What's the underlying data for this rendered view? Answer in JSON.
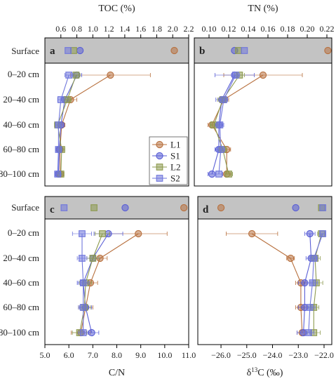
{
  "colors": {
    "L1": "#b8713f",
    "S1": "#5a5fd6",
    "L2": "#8d9a4f",
    "S2": "#6f76dc",
    "surface_band": "#c3c3c3",
    "marker_fill_alpha": 0.45
  },
  "rows": [
    "Surface",
    "0–20 cm",
    "20–40 cm",
    "40–60 cm",
    "60–80 cm",
    "80–100 cm"
  ],
  "legend": {
    "placement": "right-middle of panel a",
    "entries": [
      {
        "name": "L1",
        "marker": "circle"
      },
      {
        "name": "S1",
        "marker": "circle"
      },
      {
        "name": "L2",
        "marker": "square"
      },
      {
        "name": "S2",
        "marker": "square"
      }
    ]
  },
  "chart_data": [
    {
      "type": "line",
      "panel_label": "a",
      "xlabel": "TOC (%)",
      "xlim": [
        0.4,
        2.2
      ],
      "xticks": [
        "0.6",
        "0.8",
        "1.0",
        "1.2",
        "1.4",
        "1.6",
        "1.8",
        "2.0",
        "2.2"
      ],
      "axis_position": "top",
      "surface": {
        "L1": 2.02,
        "S1": 0.84,
        "L2": 0.76,
        "S2": 0.69
      },
      "series": [
        {
          "name": "L1",
          "values": [
            1.22,
            0.72,
            0.61,
            0.59,
            0.59
          ],
          "err": [
            0.5,
            0.08,
            0.04,
            0.04,
            0.04
          ]
        },
        {
          "name": "S1",
          "values": [
            0.8,
            0.65,
            0.6,
            0.58,
            0.57
          ],
          "err": [
            0.06,
            0.05,
            0.04,
            0.04,
            0.03
          ]
        },
        {
          "name": "L2",
          "values": [
            0.79,
            0.68,
            0.56,
            0.61,
            0.6
          ],
          "err": [
            0.05,
            0.05,
            0.04,
            0.04,
            0.04
          ]
        },
        {
          "name": "S2",
          "values": [
            0.7,
            0.6,
            0.57,
            0.57,
            0.56
          ],
          "err": [
            0.05,
            0.04,
            0.03,
            0.03,
            0.03
          ]
        }
      ]
    },
    {
      "type": "line",
      "panel_label": "b",
      "xlabel": "TN (%)",
      "xlim": [
        0.085,
        0.225
      ],
      "xticks": [
        "0.10",
        "0.12",
        "0.14",
        "0.16",
        "0.18",
        "0.20",
        "0.22"
      ],
      "axis_position": "top",
      "surface": {
        "L1": 0.221,
        "S1": 0.126,
        "L2": 0.13,
        "S2": 0.136
      },
      "series": [
        {
          "name": "L1",
          "values": [
            0.155,
            0.115,
            0.103,
            0.118,
            0.118
          ],
          "err": [
            0.04,
            0.005,
            0.004,
            0.004,
            0.004
          ]
        },
        {
          "name": "S1",
          "values": [
            0.126,
            0.113,
            0.11,
            0.11,
            0.103
          ],
          "err": [
            0.02,
            0.006,
            0.004,
            0.004,
            0.004
          ]
        },
        {
          "name": "L2",
          "values": [
            0.131,
            0.114,
            0.105,
            0.114,
            0.12
          ],
          "err": [
            0.005,
            0.005,
            0.004,
            0.004,
            0.004
          ]
        },
        {
          "name": "S2",
          "values": [
            0.127,
            0.115,
            0.111,
            0.112,
            0.11
          ],
          "err": [
            0.004,
            0.004,
            0.004,
            0.004,
            0.004
          ]
        }
      ]
    },
    {
      "type": "line",
      "panel_label": "c",
      "xlabel": "C/N",
      "xlim": [
        5.0,
        11.0
      ],
      "xticks": [
        "5.0",
        "6.0",
        "7.0",
        "8.0",
        "9.0",
        "10.0",
        "11.0"
      ],
      "axis_position": "bottom",
      "surface": {
        "L1": 10.8,
        "S1": 8.35,
        "L2": 7.05,
        "S2": 5.8
      },
      "series": [
        {
          "name": "L1",
          "values": [
            8.9,
            7.3,
            6.9,
            6.7,
            6.5
          ],
          "err": [
            1.2,
            0.3,
            0.3,
            0.3,
            0.4
          ]
        },
        {
          "name": "S1",
          "values": [
            7.65,
            7.0,
            6.6,
            6.7,
            6.95
          ],
          "err": [
            0.6,
            0.25,
            0.25,
            0.25,
            0.3
          ]
        },
        {
          "name": "L2",
          "values": [
            7.4,
            7.0,
            6.7,
            6.65,
            6.45
          ],
          "err": [
            0.3,
            0.25,
            0.25,
            0.25,
            0.3
          ]
        },
        {
          "name": "S2",
          "values": [
            6.55,
            6.55,
            6.6,
            6.6,
            6.6
          ],
          "err": [
            0.4,
            0.2,
            0.2,
            0.2,
            0.2
          ]
        }
      ]
    },
    {
      "type": "line",
      "panel_label": "d",
      "xlabel": "δ13C (‰)",
      "xlim": [
        -26.9,
        -21.7
      ],
      "xticks": [
        "−26.0",
        "−25.0",
        "−24.0",
        "−23.0",
        "−22.0"
      ],
      "axis_position": "bottom",
      "surface": {
        "L1": -26.0,
        "S1": -23.1,
        "L2": -22.1,
        "S2": -22.05
      },
      "series": [
        {
          "name": "L1",
          "values": [
            -24.8,
            -23.3,
            -22.9,
            -22.9,
            -22.85
          ],
          "err": [
            1.0,
            0.15,
            0.2,
            0.2,
            0.2
          ]
        },
        {
          "name": "S1",
          "values": [
            -22.55,
            -22.5,
            -22.75,
            -22.75,
            -22.8
          ],
          "err": [
            0.2,
            0.2,
            0.25,
            0.25,
            0.25
          ]
        },
        {
          "name": "L2",
          "values": [
            -22.1,
            -22.35,
            -22.3,
            -22.4,
            -22.4
          ],
          "err": [
            0.15,
            0.2,
            0.25,
            0.2,
            0.25
          ]
        },
        {
          "name": "S2",
          "values": [
            -22.05,
            -22.4,
            -22.45,
            -22.55,
            -22.6
          ],
          "err": [
            0.1,
            0.15,
            0.2,
            0.2,
            0.2
          ]
        }
      ]
    }
  ]
}
